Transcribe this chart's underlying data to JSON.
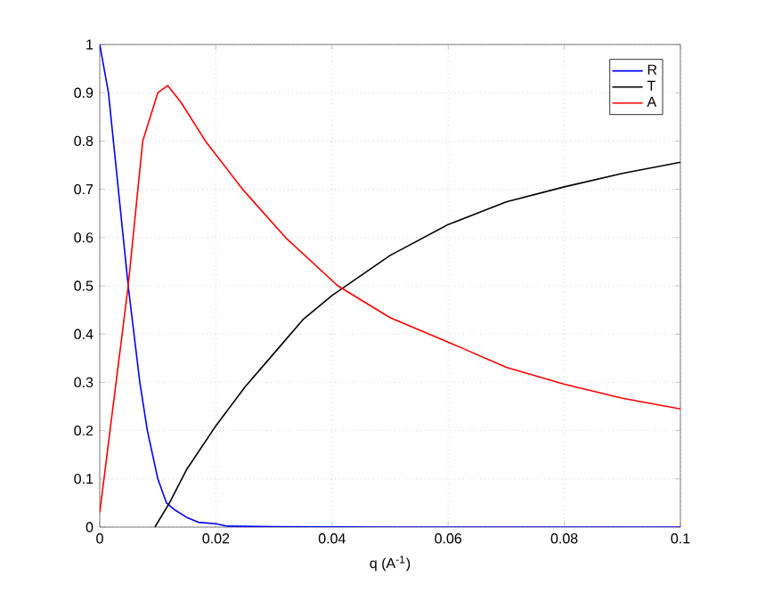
{
  "chart_data": {
    "type": "line",
    "xlabel": "q (A$^{-1}$)",
    "xlim": [
      0,
      0.1
    ],
    "ylim": [
      0,
      1
    ],
    "xticks": [
      0,
      0.02,
      0.04,
      0.06,
      0.08,
      0.1
    ],
    "yticks": [
      0,
      0.1,
      0.2,
      0.3,
      0.4,
      0.5,
      0.6,
      0.7,
      0.8,
      0.9,
      1
    ],
    "grid": true,
    "legend": "top right",
    "marker": "none",
    "line_style": "solid",
    "series": [
      {
        "name": "R",
        "color": "#0000ff",
        "x": [
          0,
          0.0015,
          0.0032,
          0.0049,
          0.0069,
          0.0082,
          0.01,
          0.0115,
          0.013,
          0.015,
          0.017,
          0.02,
          0.022,
          0.03,
          0.05,
          0.1
        ],
        "values": [
          1,
          0.9,
          0.7,
          0.5,
          0.3,
          0.2,
          0.1,
          0.05,
          0.035,
          0.02,
          0.01,
          0.007,
          0.002,
          0.001,
          0,
          0
        ]
      },
      {
        "name": "T",
        "color": "#000000",
        "x": [
          0.0095,
          0.012,
          0.015,
          0.02,
          0.025,
          0.03,
          0.035,
          0.04,
          0.05,
          0.06,
          0.07,
          0.08,
          0.09,
          0.1
        ],
        "values": [
          0,
          0.05,
          0.12,
          0.21,
          0.29,
          0.36,
          0.43,
          0.48,
          0.563,
          0.627,
          0.674,
          0.705,
          0.733,
          0.756
        ]
      },
      {
        "name": "A",
        "color": "#ff0000",
        "x": [
          0,
          0.0025,
          0.0049,
          0.0074,
          0.01,
          0.0117,
          0.014,
          0.0182,
          0.0246,
          0.032,
          0.041,
          0.05,
          0.0622,
          0.07,
          0.08,
          0.09,
          0.1
        ],
        "values": [
          0.03,
          0.27,
          0.5,
          0.8,
          0.9,
          0.915,
          0.88,
          0.8,
          0.7,
          0.6,
          0.5,
          0.434,
          0.372,
          0.331,
          0.296,
          0.267,
          0.245
        ]
      }
    ]
  }
}
